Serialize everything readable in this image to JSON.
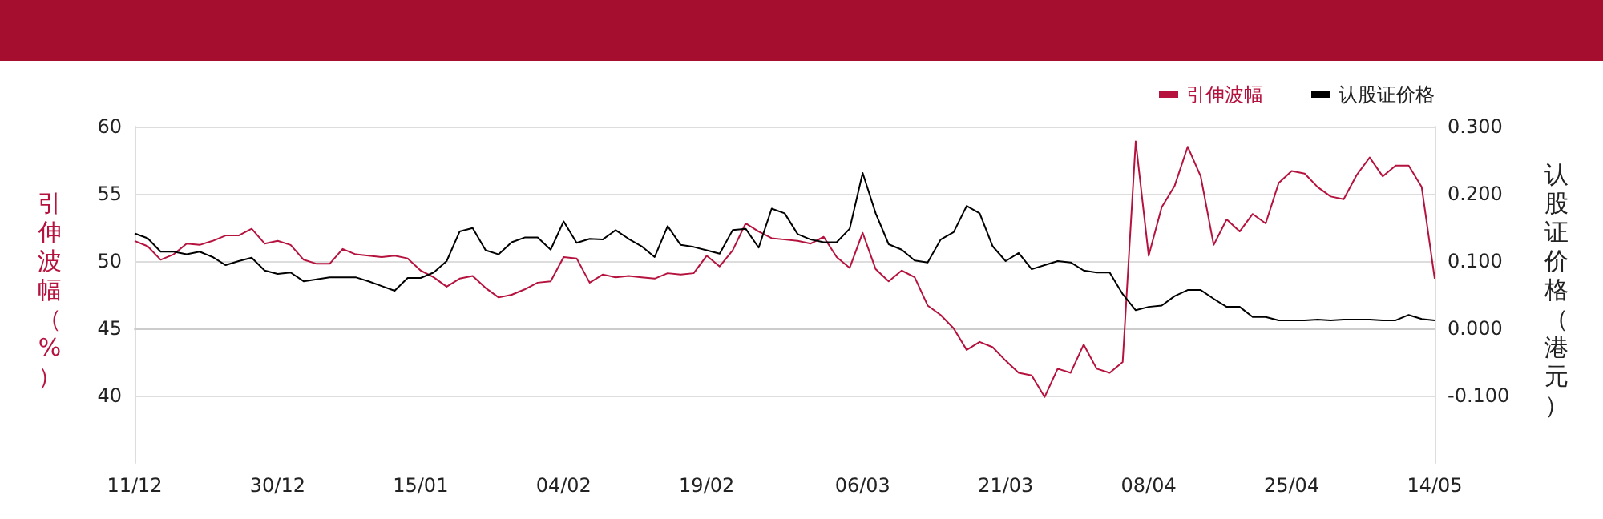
{
  "chart_data": {
    "type": "line",
    "ylabel": "引伸波幅（%）",
    "y2label": "认股证价格（港元）",
    "categories": [
      "11/12",
      null,
      null,
      null,
      null,
      null,
      null,
      null,
      null,
      null,
      null,
      "30/12",
      null,
      null,
      null,
      null,
      null,
      null,
      null,
      null,
      null,
      null,
      "15/01",
      null,
      null,
      null,
      null,
      null,
      null,
      null,
      null,
      null,
      null,
      "04/02",
      null,
      null,
      null,
      null,
      null,
      null,
      null,
      null,
      null,
      null,
      "19/02",
      null,
      null,
      null,
      null,
      null,
      null,
      null,
      null,
      null,
      null,
      null,
      "06/03",
      null,
      null,
      null,
      null,
      null,
      null,
      null,
      null,
      null,
      null,
      "21/03",
      null,
      null,
      null,
      null,
      null,
      null,
      null,
      null,
      null,
      null,
      "08/04",
      null,
      null,
      null,
      null,
      null,
      null,
      null,
      null,
      null,
      null,
      "25/04",
      null,
      null,
      null,
      null,
      null,
      null,
      null,
      null,
      null,
      null,
      "14/05"
    ],
    "series": [
      {
        "name": "引伸波幅",
        "color": "#b5123e",
        "axis": "y",
        "values": [
          51.5,
          51.1,
          50.1,
          50.5,
          51.3,
          51.2,
          51.5,
          51.9,
          51.9,
          52.4,
          51.3,
          51.5,
          51.2,
          50.1,
          49.8,
          49.8,
          50.9,
          50.5,
          50.4,
          50.3,
          50.4,
          50.2,
          49.3,
          48.8,
          48.1,
          48.7,
          48.9,
          48.0,
          47.3,
          47.5,
          47.9,
          48.4,
          48.5,
          50.3,
          50.2,
          48.4,
          49.0,
          48.8,
          48.9,
          48.8,
          48.7,
          49.1,
          49.0,
          49.1,
          50.4,
          49.6,
          50.8,
          52.8,
          52.2,
          51.7,
          51.6,
          51.5,
          51.3,
          51.8,
          50.3,
          49.5,
          52.1,
          49.4,
          48.5,
          49.3,
          48.8,
          46.7,
          46.0,
          45.0,
          43.4,
          44.0,
          43.6,
          42.6,
          41.7,
          41.5,
          39.9,
          42.0,
          41.7,
          43.8,
          42.0,
          41.7,
          42.5,
          58.9,
          50.4,
          54.0,
          55.6,
          58.5,
          56.3,
          51.2,
          53.1,
          52.2,
          53.5,
          52.8,
          55.8,
          56.7,
          56.5,
          55.5,
          54.8,
          54.6,
          56.4,
          57.7,
          56.3,
          57.1,
          57.1,
          55.5,
          48.7
        ]
      },
      {
        "name": "认股证价格",
        "color": "#000000",
        "axis": "y2",
        "values": [
          0.141,
          0.134,
          0.114,
          0.114,
          0.11,
          0.114,
          0.106,
          0.094,
          0.1,
          0.105,
          0.086,
          0.081,
          0.083,
          0.07,
          0.073,
          0.076,
          0.076,
          0.076,
          0.07,
          0.063,
          0.056,
          0.075,
          0.075,
          0.083,
          0.1,
          0.144,
          0.149,
          0.116,
          0.11,
          0.128,
          0.135,
          0.135,
          0.117,
          0.159,
          0.127,
          0.133,
          0.132,
          0.146,
          0.133,
          0.122,
          0.106,
          0.152,
          0.124,
          0.121,
          0.116,
          0.111,
          0.146,
          0.148,
          0.12,
          0.178,
          0.171,
          0.14,
          0.132,
          0.128,
          0.128,
          0.148,
          0.231,
          0.171,
          0.125,
          0.117,
          0.101,
          0.098,
          0.132,
          0.143,
          0.182,
          0.171,
          0.122,
          0.1,
          0.112,
          0.088,
          0.094,
          0.1,
          0.098,
          0.086,
          0.083,
          0.083,
          0.051,
          0.027,
          0.032,
          0.034,
          0.048,
          0.057,
          0.057,
          0.044,
          0.032,
          0.032,
          0.017,
          0.017,
          0.012,
          0.012,
          0.012,
          0.013,
          0.012,
          0.013,
          0.013,
          0.013,
          0.012,
          0.012,
          0.02,
          0.014,
          0.012
        ]
      }
    ],
    "ylim": [
      35,
      60
    ],
    "yticks": [
      40,
      45,
      50,
      55,
      60
    ],
    "y2lim": [
      -0.2,
      0.3
    ],
    "y2ticks": [
      {
        "value": -0.1,
        "label": "-0.100"
      },
      {
        "value": 0,
        "label": "0.000"
      },
      {
        "value": 0.1,
        "label": "0.100"
      },
      {
        "value": 0.2,
        "label": "0.200"
      },
      {
        "value": 0.3,
        "label": "0.300"
      }
    ],
    "grid": "y",
    "legend": "top right",
    "marker": "none",
    "line_style": "solid"
  }
}
